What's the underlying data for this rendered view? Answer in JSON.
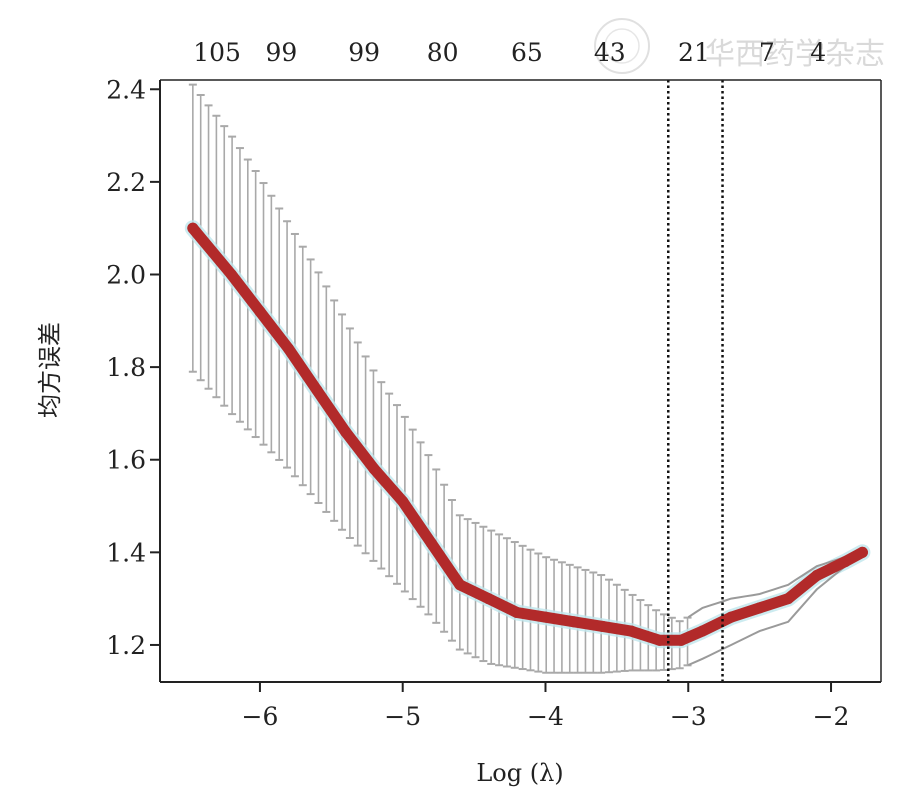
{
  "watermark": {
    "text": "华西药学杂志"
  },
  "chart_data": {
    "type": "line",
    "xlabel": "Log (λ)",
    "ylabel": "均方误差",
    "xlim": [
      -6.7,
      -1.65
    ],
    "ylim": [
      1.12,
      2.42
    ],
    "x_ticks": [
      -6,
      -5,
      -4,
      -3,
      -2
    ],
    "x_tick_labels": [
      "−6",
      "−5",
      "−4",
      "−3",
      "−2"
    ],
    "y_ticks": [
      1.2,
      1.4,
      1.6,
      1.8,
      2.0,
      2.2,
      2.4
    ],
    "y_tick_labels": [
      "1.2",
      "1.4",
      "1.6",
      "1.8",
      "2.0",
      "2.2",
      "2.4"
    ],
    "top_axis": {
      "positions": [
        -6.3,
        -5.85,
        -5.27,
        -4.72,
        -4.13,
        -3.55,
        -2.96,
        -2.45,
        -2.09
      ],
      "labels": [
        "105",
        "99",
        "99",
        "80",
        "65",
        "43",
        "21",
        "7",
        "4"
      ]
    },
    "vlines": [
      -3.14,
      -2.76
    ],
    "grid": false,
    "series": [
      {
        "color": "#b22a2a",
        "error_color": "#a9a9a9",
        "x": [
          -6.47,
          -6.2,
          -6.0,
          -5.8,
          -5.6,
          -5.4,
          -5.2,
          -5.0,
          -4.8,
          -4.6,
          -4.4,
          -4.2,
          -4.0,
          -3.8,
          -3.6,
          -3.4,
          -3.2,
          -3.05,
          -2.9,
          -2.7,
          -2.5,
          -2.3,
          -2.1,
          -1.9,
          -1.78
        ],
        "y": [
          2.1,
          2.0,
          1.92,
          1.84,
          1.75,
          1.66,
          1.58,
          1.51,
          1.42,
          1.33,
          1.3,
          1.27,
          1.26,
          1.25,
          1.24,
          1.23,
          1.21,
          1.21,
          1.23,
          1.26,
          1.28,
          1.3,
          1.35,
          1.38,
          1.4
        ],
        "lower": [
          1.79,
          1.7,
          1.64,
          1.58,
          1.51,
          1.44,
          1.38,
          1.32,
          1.26,
          1.19,
          1.16,
          1.15,
          1.14,
          1.14,
          1.14,
          1.145,
          1.145,
          1.15,
          1.17,
          1.2,
          1.23,
          1.25,
          1.32,
          1.37,
          1.39
        ],
        "upper": [
          2.41,
          2.3,
          2.21,
          2.11,
          2.01,
          1.9,
          1.79,
          1.7,
          1.6,
          1.48,
          1.45,
          1.42,
          1.39,
          1.37,
          1.35,
          1.31,
          1.27,
          1.25,
          1.28,
          1.3,
          1.31,
          1.33,
          1.37,
          1.39,
          1.41
        ],
        "error_bar_xmax": -3.0
      }
    ]
  }
}
